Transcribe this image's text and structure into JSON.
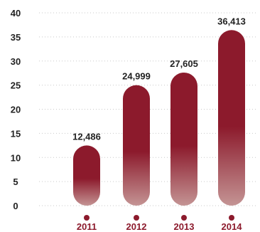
{
  "chart_data": {
    "type": "bar",
    "title": "",
    "xlabel": "",
    "ylabel": "",
    "categories": [
      "2011",
      "2012",
      "2013",
      "2014"
    ],
    "values": [
      12.486,
      24.999,
      27.605,
      36.413
    ],
    "data_labels": [
      "12,486",
      "24,999",
      "27,605",
      "36,413"
    ],
    "y_ticks": [
      "0",
      "5",
      "10",
      "15",
      "20",
      "25",
      "30",
      "35",
      "40"
    ],
    "ylim": [
      0,
      40
    ],
    "grid": "dotted horizontal",
    "colors": {
      "bar_top": "#8c1a2c",
      "bar_fade": "#c49494",
      "marker": "#8c1a2c",
      "category_label": "#8c1a2c",
      "tick_label": "#222222",
      "grid": "#c9c9c9"
    }
  }
}
